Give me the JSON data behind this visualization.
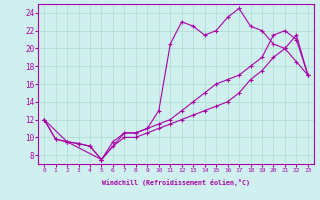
{
  "xlabel": "Windchill (Refroidissement éolien,°C)",
  "bg_color": "#cff0ee",
  "grid_color": "#aaddcc",
  "line_color": "#aa00aa",
  "xmin": 0,
  "xmax": 23,
  "ymin": 7,
  "ymax": 25,
  "yticks": [
    8,
    10,
    12,
    14,
    16,
    18,
    20,
    22,
    24
  ],
  "xticks": [
    0,
    1,
    2,
    3,
    4,
    5,
    6,
    7,
    8,
    9,
    10,
    11,
    12,
    13,
    14,
    15,
    16,
    17,
    18,
    19,
    20,
    21,
    22,
    23
  ],
  "line1_x": [
    0,
    1,
    2,
    3,
    4,
    5,
    6,
    7,
    8,
    9,
    10,
    11,
    12,
    13,
    14,
    15,
    16,
    17,
    18,
    19,
    20,
    21,
    22,
    23
  ],
  "line1_y": [
    12.0,
    9.8,
    9.5,
    9.3,
    9.0,
    7.5,
    9.0,
    10.0,
    10.0,
    10.5,
    11.0,
    11.5,
    12.0,
    12.5,
    13.0,
    13.5,
    14.0,
    15.0,
    16.5,
    17.5,
    19.0,
    20.0,
    21.5,
    17.0
  ],
  "line2_x": [
    0,
    1,
    2,
    3,
    4,
    5,
    6,
    7,
    8,
    9,
    10,
    11,
    12,
    13,
    14,
    15,
    16,
    17,
    18,
    19,
    20,
    21,
    22,
    23
  ],
  "line2_y": [
    12.0,
    9.8,
    9.5,
    9.3,
    9.0,
    7.5,
    9.5,
    10.5,
    10.5,
    11.0,
    13.0,
    20.5,
    23.0,
    22.5,
    21.5,
    22.0,
    23.5,
    24.5,
    22.5,
    22.0,
    20.5,
    20.0,
    18.5,
    17.0
  ],
  "line3_x": [
    0,
    2,
    5,
    7,
    8,
    9,
    10,
    11,
    12,
    13,
    14,
    15,
    16,
    17,
    18,
    19,
    20,
    21,
    22,
    23
  ],
  "line3_y": [
    12.0,
    9.5,
    7.5,
    10.5,
    10.5,
    11.0,
    11.5,
    12.0,
    13.0,
    14.0,
    15.0,
    16.0,
    16.5,
    17.0,
    18.0,
    19.0,
    21.5,
    22.0,
    21.0,
    17.0
  ]
}
